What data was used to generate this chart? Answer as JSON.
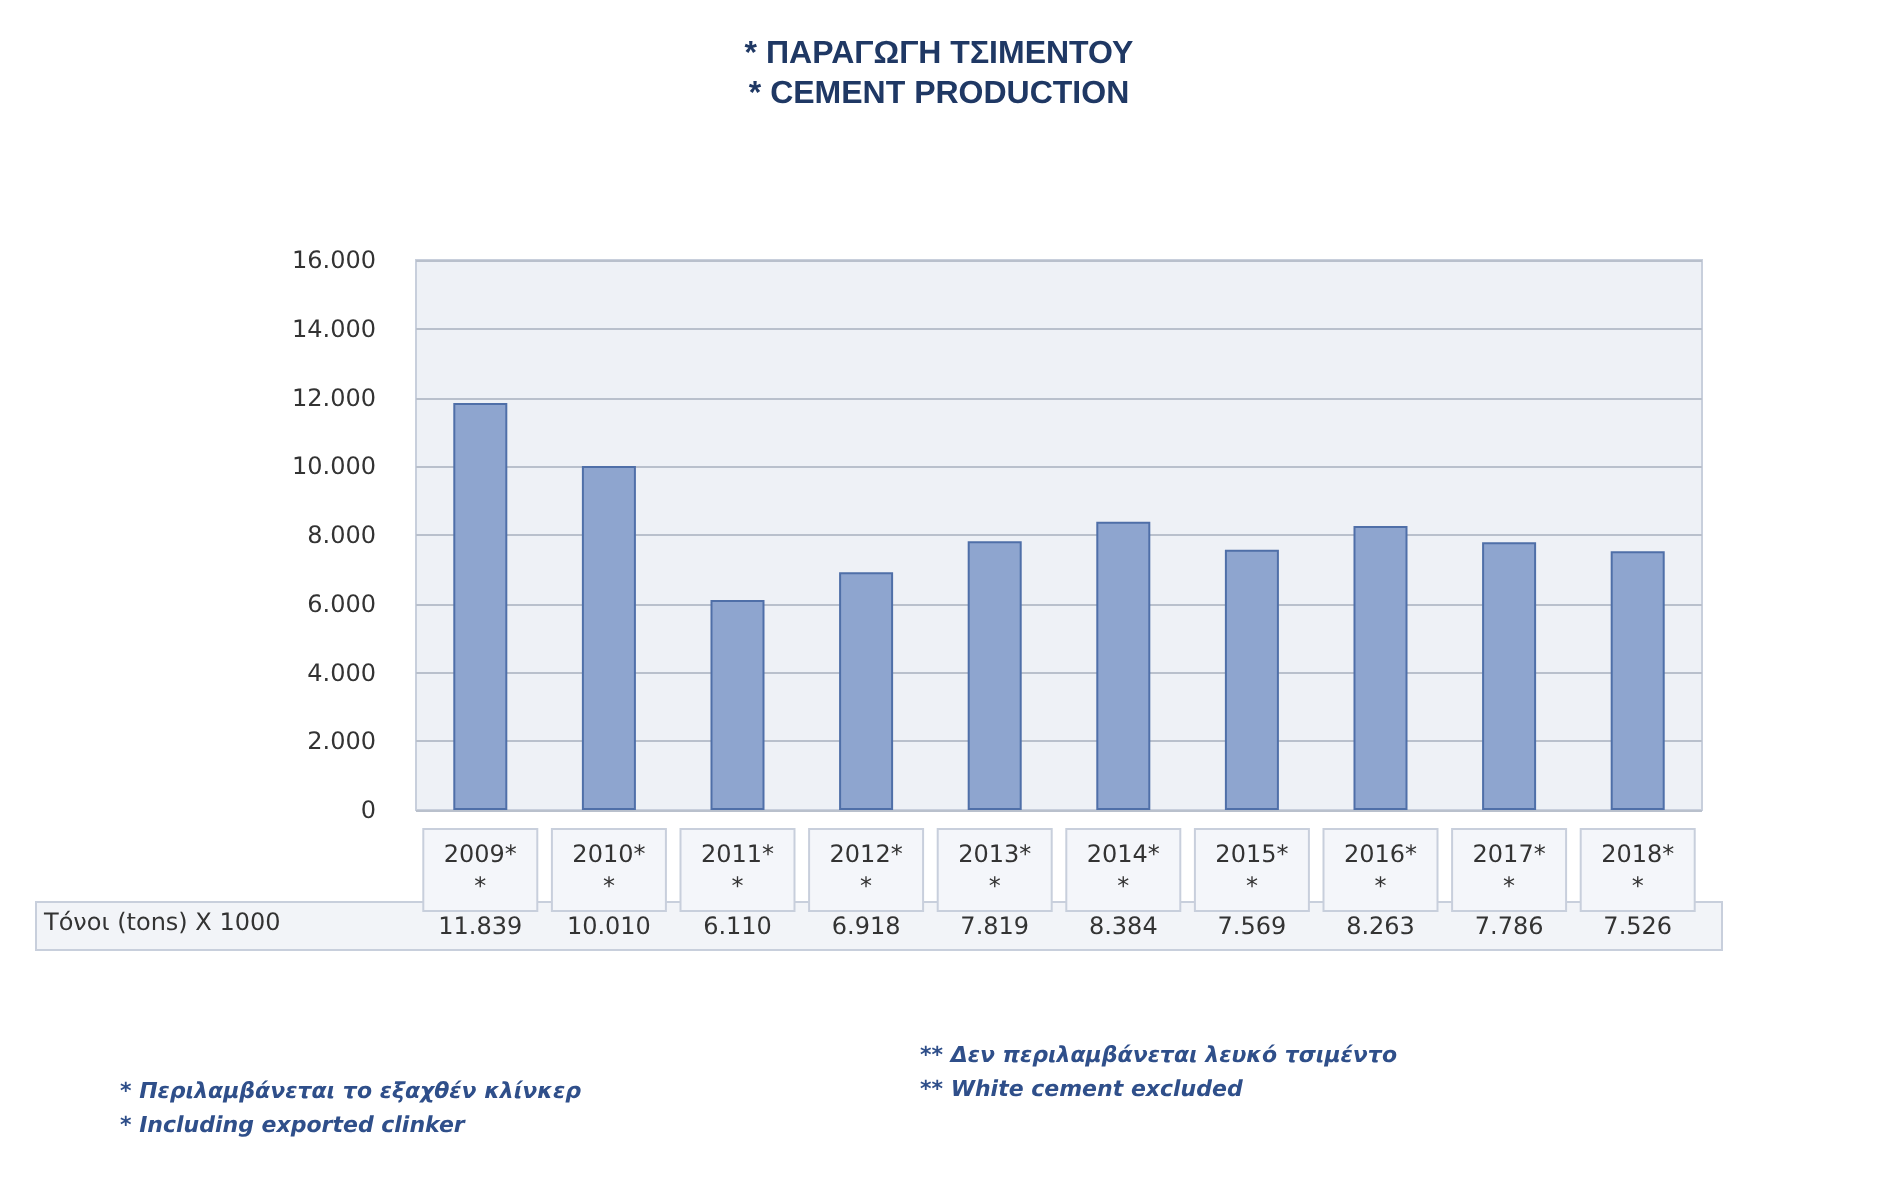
{
  "chart_data": {
    "type": "bar",
    "title": "* ΠΑΡΑΓΩΓΗ ΤΣΙΜΕΝΤΟΥ",
    "subtitle": "* CEMENT PRODUCTION",
    "categories": [
      "2009**",
      "2010**",
      "2011**",
      "2012**",
      "2013**",
      "2014**",
      "2015**",
      "2016**",
      "2017**",
      "2018**"
    ],
    "values": [
      11839,
      10010,
      6110,
      6918,
      7819,
      8384,
      7569,
      8263,
      7786,
      7526
    ],
    "value_labels": [
      "11.839",
      "10.010",
      "6.110",
      "6.918",
      "7.819",
      "8.384",
      "7.569",
      "8.263",
      "7.786",
      "7.526"
    ],
    "color": "#8ea5cf",
    "ylim": [
      0,
      16000
    ],
    "yticks": [
      {
        "value": 0,
        "label": "0"
      },
      {
        "value": 2000,
        "label": "2.000"
      },
      {
        "value": 4000,
        "label": "4.000"
      },
      {
        "value": 6000,
        "label": "6.000"
      },
      {
        "value": 8000,
        "label": "8.000"
      },
      {
        "value": 10000,
        "label": "10.000"
      },
      {
        "value": 12000,
        "label": "12.000"
      },
      {
        "value": 14000,
        "label": "14.000"
      },
      {
        "value": 16000,
        "label": "16.000"
      }
    ],
    "grid": "y",
    "annotations": [
      "Τόνοι (tons) X 1000",
      "* Περιλαμβάνεται το εξαχθέν κλίνκερ",
      "* Including exported clinker",
      "** Δεν περιλαμβάνεται λευκό τσιμέντο",
      "** White cement excluded"
    ]
  }
}
